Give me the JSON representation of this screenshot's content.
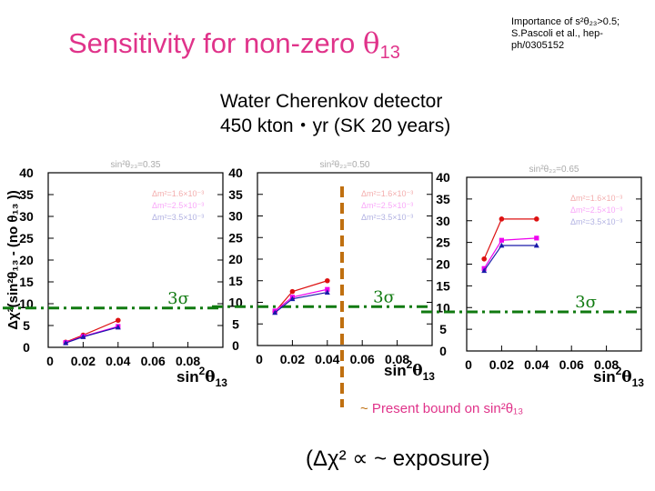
{
  "title": {
    "text": "Sensitivity for non-zero ",
    "symbol": "θ",
    "subscript": "13"
  },
  "reference": {
    "line1": "Importance of s²θ₂₃>0.5;",
    "line2": "S.Pascoli et al., hep-",
    "line3": "ph/0305152"
  },
  "detector": {
    "line1": "Water Cherenkov detector",
    "line2": "450 kton・yr  (SK 20 years)"
  },
  "bound_label": {
    "symbol": "~",
    "text": " Present bound on sin²θ₁₃"
  },
  "exposure_note": "(Δχ² ∝ ~ exposure)",
  "colors": {
    "red": "#dd1111",
    "magenta": "#ee00ee",
    "blue": "#1a1aaa",
    "threshold": "#107a10",
    "bound": "#c07010"
  },
  "chart_data": [
    {
      "type": "line",
      "header": "sin²θ₂₃=0.35",
      "ylabel": "Δχ²(sin²θ₁₃ - (no θ₁₃ ))",
      "xlabel": "sin²θ₁₃",
      "xlim": [
        0,
        0.1
      ],
      "ylim": [
        0,
        40
      ],
      "x_ticks": [
        0,
        0.02,
        0.04,
        0.06,
        0.08
      ],
      "x_tick_labels": [
        "0",
        "0.02",
        "0.04",
        "0.06",
        "0.08"
      ],
      "y_ticks": [
        0,
        5,
        10,
        15,
        20,
        25,
        30,
        35,
        40
      ],
      "y_tick_labels": [
        "0",
        "5",
        "10",
        "15",
        "20",
        "25",
        "30",
        "35",
        "40"
      ],
      "threshold": {
        "value": 9,
        "label": "3σ"
      },
      "legend": [
        "Δm²=1.6×10⁻³",
        "Δm²=2.5×10⁻³",
        "Δm²=3.5×10⁻³"
      ],
      "x": [
        0.01,
        0.02,
        0.04
      ],
      "series": [
        {
          "name": "Δm²=1.6×10⁻³",
          "color": "#dd1111",
          "marker": "circle",
          "values": [
            1.2,
            2.8,
            6.2
          ]
        },
        {
          "name": "Δm²=2.5×10⁻³",
          "color": "#ee00ee",
          "marker": "square",
          "values": [
            1.1,
            2.5,
            4.8
          ]
        },
        {
          "name": "Δm²=3.5×10⁻³",
          "color": "#1a1aaa",
          "marker": "triangle",
          "values": [
            1.0,
            2.4,
            4.6
          ]
        }
      ]
    },
    {
      "type": "line",
      "header": "sin²θ₂₃=0.50",
      "ylabel": "",
      "xlabel": "sin²θ₁₃",
      "xlim": [
        0,
        0.1
      ],
      "ylim": [
        0,
        40
      ],
      "x_ticks": [
        0,
        0.02,
        0.04,
        0.06,
        0.08
      ],
      "x_tick_labels": [
        "0",
        "0.02",
        "0.04",
        "0.06",
        "0.08"
      ],
      "y_ticks": [
        0,
        5,
        10,
        15,
        20,
        25,
        30,
        35,
        40
      ],
      "y_tick_labels": [
        "0",
        "5",
        "10",
        "15",
        "20",
        "25",
        "30",
        "35",
        "40"
      ],
      "threshold": {
        "value": 9,
        "label": "3σ"
      },
      "legend": [
        "Δm²=1.6×10⁻³",
        "Δm²=2.5×10⁻³",
        "Δm²=3.5×10⁻³"
      ],
      "present_bound": 0.05,
      "x": [
        0.01,
        0.02,
        0.04
      ],
      "series": [
        {
          "name": "Δm²=1.6×10⁻³",
          "color": "#dd1111",
          "marker": "circle",
          "values": [
            7.8,
            12.5,
            15.0
          ]
        },
        {
          "name": "Δm²=2.5×10⁻³",
          "color": "#ee00ee",
          "marker": "square",
          "values": [
            8.0,
            11.2,
            13.0
          ]
        },
        {
          "name": "Δm²=3.5×10⁻³",
          "color": "#1a1aaa",
          "marker": "triangle",
          "values": [
            7.6,
            10.8,
            12.3
          ]
        }
      ]
    },
    {
      "type": "line",
      "header": "sin²θ₂₃=0.65",
      "ylabel": "",
      "xlabel": "sin²θ₁₃",
      "xlim": [
        0,
        0.1
      ],
      "ylim": [
        0,
        40
      ],
      "x_ticks": [
        0,
        0.02,
        0.04,
        0.06,
        0.08
      ],
      "x_tick_labels": [
        "0",
        "0.02",
        "0.04",
        "0.06",
        "0.08"
      ],
      "y_ticks": [
        0,
        5,
        10,
        15,
        20,
        25,
        30,
        35,
        40
      ],
      "y_tick_labels": [
        "0",
        "5",
        "10",
        "15",
        "20",
        "25",
        "30",
        "35",
        "40"
      ],
      "threshold": {
        "value": 9,
        "label": "3σ"
      },
      "legend": [
        "Δm²=1.6×10⁻³",
        "Δm²=2.5×10⁻³",
        "Δm²=3.5×10⁻³"
      ],
      "x": [
        0.01,
        0.02,
        0.04
      ],
      "series": [
        {
          "name": "Δm²=1.6×10⁻³",
          "color": "#dd1111",
          "marker": "circle",
          "values": [
            21.2,
            30.4,
            30.4
          ]
        },
        {
          "name": "Δm²=2.5×10⁻³",
          "color": "#ee00ee",
          "marker": "square",
          "values": [
            19.0,
            25.5,
            26.0
          ]
        },
        {
          "name": "Δm²=3.5×10⁻³",
          "color": "#1a1aaa",
          "marker": "triangle",
          "values": [
            18.5,
            24.3,
            24.3
          ]
        }
      ]
    }
  ]
}
